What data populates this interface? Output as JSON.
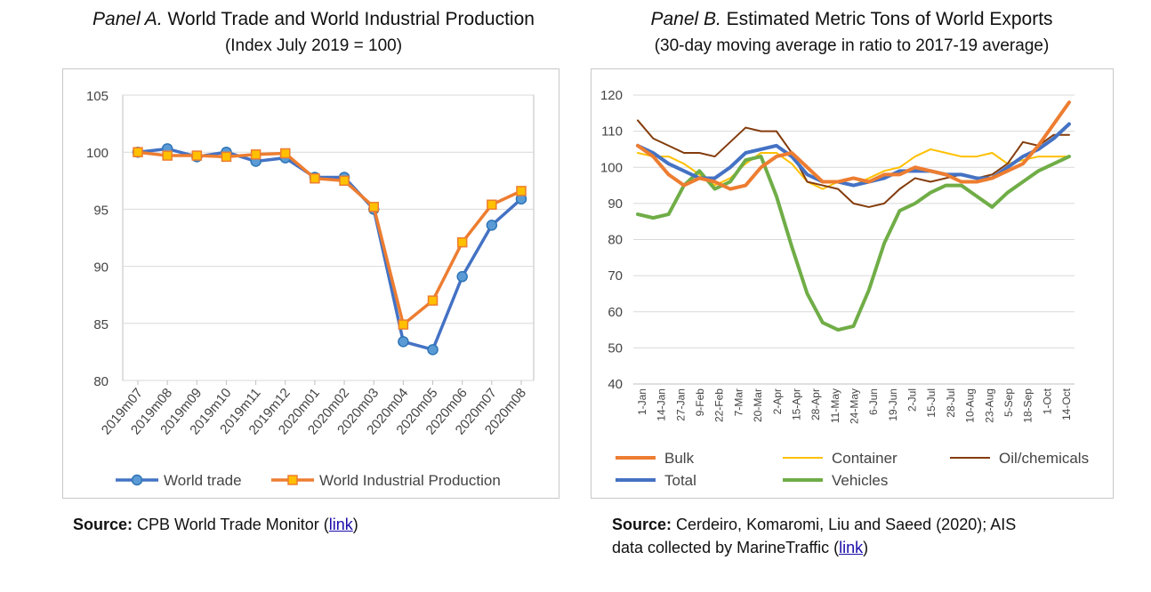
{
  "panel_a": {
    "title_italic": "Panel A.",
    "title_rest": " World Trade and World Industrial Production",
    "subtitle": "(Index July 2019 = 100)",
    "source_label": "Source:",
    "source_text": " CPB World Trade Monitor (",
    "source_link": "link",
    "source_close": ")"
  },
  "panel_b": {
    "title_italic": "Panel B.",
    "title_rest": " Estimated Metric Tons of World Exports",
    "subtitle": "(30-day moving average in ratio to 2017-19 average)",
    "source_label": "Source:",
    "source_text_line1": " Cerdeiro, Komaromi, Liu and Saeed (2020); AIS",
    "source_text_line2": "data collected by MarineTraffic (",
    "source_link": "link",
    "source_close": ")"
  },
  "chart_data": [
    {
      "type": "line",
      "categories": [
        "2019m07",
        "2019m08",
        "2019m09",
        "2019m10",
        "2019m11",
        "2019m12",
        "2020m01",
        "2020m02",
        "2020m03",
        "2020m04",
        "2020m05",
        "2020m06",
        "2020m07",
        "2020m08"
      ],
      "ylim": [
        80,
        105
      ],
      "yticks": [
        80,
        85,
        90,
        95,
        100,
        105
      ],
      "grid": true,
      "legend": "bottom",
      "series": [
        {
          "name": "World trade",
          "color": "#4472c4",
          "marker": "circle",
          "values": [
            100.0,
            100.3,
            99.6,
            100.0,
            99.2,
            99.5,
            97.8,
            97.8,
            95.0,
            83.4,
            82.7,
            89.1,
            93.6,
            95.9
          ]
        },
        {
          "name": "World Industrial Production",
          "color": "#ed7d31",
          "marker": "square",
          "values": [
            100.0,
            99.7,
            99.7,
            99.6,
            99.8,
            99.9,
            97.7,
            97.5,
            95.2,
            84.9,
            87.0,
            92.1,
            95.4,
            96.6
          ]
        }
      ]
    },
    {
      "type": "line",
      "x_ticks": [
        "1-Jan",
        "14-Jan",
        "27-Jan",
        "9-Feb",
        "22-Feb",
        "7-Mar",
        "20-Mar",
        "2-Apr",
        "15-Apr",
        "28-Apr",
        "11-May",
        "24-May",
        "6-Jun",
        "19-Jun",
        "2-Jul",
        "15-Jul",
        "28-Jul",
        "10-Aug",
        "23-Aug",
        "5-Sep",
        "18-Sep",
        "1-Oct",
        "14-Oct"
      ],
      "ylim": [
        40,
        120
      ],
      "yticks": [
        40,
        50,
        60,
        70,
        80,
        90,
        100,
        110,
        120
      ],
      "grid": true,
      "legend": "bottom",
      "series": [
        {
          "name": "Bulk",
          "color": "#ed7d31",
          "width": 4,
          "values": [
            106,
            103,
            98,
            95,
            97,
            96,
            94,
            95,
            100,
            103,
            104,
            100,
            96,
            96,
            97,
            96,
            98,
            98,
            100,
            99,
            98,
            96,
            96,
            97,
            99,
            101,
            106,
            112,
            118
          ]
        },
        {
          "name": "Container",
          "color": "#ffc000",
          "width": 2,
          "values": [
            104,
            103,
            103,
            101,
            98,
            95,
            97,
            101,
            104,
            104,
            101,
            96,
            94,
            96,
            95,
            97,
            99,
            100,
            103,
            105,
            104,
            103,
            103,
            104,
            101,
            102,
            103,
            103,
            103
          ]
        },
        {
          "name": "Oil/chemicals",
          "color": "#843c0c",
          "width": 2,
          "values": [
            113,
            108,
            106,
            104,
            104,
            103,
            107,
            111,
            110,
            110,
            104,
            96,
            95,
            94,
            90,
            89,
            90,
            94,
            97,
            96,
            97,
            98,
            97,
            98,
            101,
            107,
            106,
            109,
            109
          ]
        },
        {
          "name": "Total",
          "color": "#4472c4",
          "width": 4,
          "values": [
            106,
            104,
            101,
            99,
            97,
            97,
            100,
            104,
            105,
            106,
            103,
            98,
            96,
            96,
            95,
            96,
            97,
            99,
            99,
            99,
            98,
            98,
            97,
            97,
            100,
            103,
            105,
            108,
            112
          ]
        },
        {
          "name": "Vehicles",
          "color": "#70ad47",
          "width": 4,
          "values": [
            87,
            86,
            87,
            95,
            99,
            94,
            96,
            102,
            103,
            92,
            78,
            65,
            57,
            55,
            56,
            66,
            79,
            88,
            90,
            93,
            95,
            95,
            92,
            89,
            93,
            96,
            99,
            101,
            103
          ]
        }
      ]
    }
  ]
}
